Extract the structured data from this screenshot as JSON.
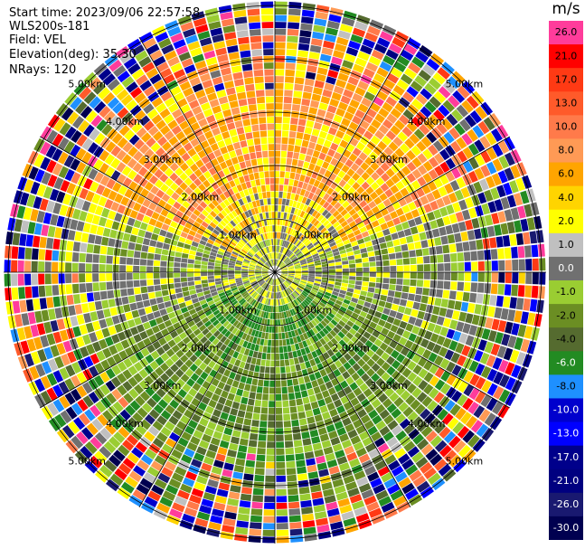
{
  "header": {
    "start_time": "Start time: 2023/09/06 22:57:58",
    "instrument": "WLS200s-181",
    "field": "Field: VEL",
    "elevation": "Elevation(deg): 35.30",
    "nrays": "NRays: 120"
  },
  "colorbar": {
    "unit": "m/s",
    "ticks": [
      "26.0",
      "21.0",
      "17.0",
      "13.0",
      "10.0",
      "8.0",
      "6.0",
      "4.0",
      "2.0",
      "1.0",
      "0.0",
      "-1.0",
      "-2.0",
      "-4.0",
      "-6.0",
      "-8.0",
      "-10.0",
      "-13.0",
      "-17.0",
      "-21.0",
      "-26.0",
      "-30.0"
    ],
    "colors": [
      "#ff3c9b",
      "#ff0000",
      "#ff3a14",
      "#ff5a2a",
      "#ff7a4a",
      "#ff9a55",
      "#ffa500",
      "#ffd400",
      "#ffff00",
      "#c0c0c0",
      "#707070",
      "#9acd32",
      "#6b8e23",
      "#556b2f",
      "#228b22",
      "#1e90ff",
      "#0000cd",
      "#0000ff",
      "#00008b",
      "#000080",
      "#191970",
      "#000050"
    ]
  },
  "chart_data": {
    "type": "heatmap",
    "title": "",
    "field": "VEL",
    "units": "m/s",
    "nrays": 120,
    "elevation_deg": 35.3,
    "start_time": "2023/09/06 22:57:58",
    "range_rings": [
      "1.00km",
      "2.00km",
      "3.00km",
      "4.00km",
      "5.00km"
    ],
    "color_scale": {
      "min": -30.0,
      "max": 26.0
    },
    "pattern": "Positive velocities (yellow/orange, 2–10 m/s) to the north, negative velocities (green, -2 to -6 m/s) to the south, near-zero (grey) east and west; outer gates dominated by noise across the full scale."
  }
}
